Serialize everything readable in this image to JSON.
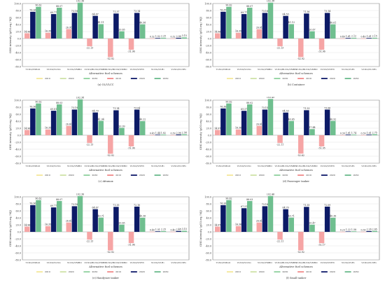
{
  "legend_labels": [
    "2010",
    "2020",
    "2030",
    "2010",
    "2020",
    "2030"
  ],
  "legend_colors": [
    "#f4e79a",
    "#cfe2a8",
    "#8fd19e",
    "#f08a8a",
    "#101b6b",
    "#6aba8c"
  ],
  "series_colors": {
    "2010": "#f6a5a5",
    "2020": "#0c1a66",
    "2030": "#6fbf8f"
  },
  "chart_data": [
    {
      "type": "bar",
      "caption": "(a) OL/VLCC",
      "xlabel": "Alternative fuel schemes",
      "ylabel": "GHG intensity (gCO₂eq / MJ)",
      "ylim": [
        -80,
        100
      ],
      "yticks": [
        -80,
        -60,
        -40,
        -20,
        0,
        20,
        40,
        60,
        80,
        100
      ],
      "categories": [
        "TLNG/VMGO",
        "VLNG/VLNG",
        "VLNG/VMBO",
        "VLNG/BLNG/VMBO",
        "VLNG/BLNG/VMBO",
        "VLNG/VNH3",
        "VLNG/VLH₂",
        "VLNG/VLNH₃"
      ],
      "series": [
        {
          "name": "2010",
          "values": [
            14.96,
            16.35,
            26.91,
            -22.13,
            -52.92,
            -31.96,
            0.32,
            0.32
          ]
        },
        {
          "name": "2020",
          "values": [
            76.26,
            69.77,
            73.18,
            64.67,
            71.37,
            73.14,
            1.52,
            2.06
          ]
        },
        {
          "name": "2030",
          "values": [
            90.62,
            88.07,
            102.36,
            41.11,
            20.65,
            40.58,
            2.25,
            3.15
          ]
        }
      ]
    },
    {
      "type": "bar",
      "caption": "(b) Container",
      "xlabel": "Alternative fuel schemes",
      "ylabel": "GHG intensity (gCO₂eq / MJ)",
      "ylim": [
        -80,
        100
      ],
      "yticks": [
        -80,
        -60,
        -40,
        -20,
        0,
        20,
        40,
        60,
        80,
        100
      ],
      "categories": [
        "TLNG/VMGO",
        "VLNG/VLNG",
        "VLNG/VMBO",
        "VLNG/BLNG/VMBO",
        "VLNG/BLNG/VMBO",
        "VLNG/VNH3",
        "VLNG/VLH₂",
        "VLNG/VLNH₃"
      ],
      "series": [
        {
          "name": "2010",
          "values": [
            14.96,
            16.35,
            26.61,
            -22.13,
            -52.92,
            -31.96,
            0.4,
            0.4
          ]
        },
        {
          "name": "2020",
          "values": [
            76.37,
            69.77,
            73.16,
            64.53,
            71.36,
            73.14,
            1.61,
            1.61
          ]
        },
        {
          "name": "2030",
          "values": [
            90.62,
            88.07,
            102.38,
            41.13,
            20.67,
            40.61,
            2.12,
            2.15
          ]
        }
      ]
    },
    {
      "type": "bar",
      "caption": "(c) Aframax",
      "xlabel": "Alternative fuel schemes",
      "ylabel": "GHG intensity (gCO₂eq / MJ)",
      "ylim": [
        -80,
        100
      ],
      "yticks": [
        -80,
        -60,
        -40,
        -20,
        0,
        20,
        40,
        60,
        80,
        100
      ],
      "categories": [
        "TLNG/VMGO",
        "VLNG/VLNG",
        "VLNG/VMBO",
        "VLNG/BLNG/VMBO",
        "VLNG/BLNG/VMBO",
        "VLNG/VNH3",
        "VLNG/VLH₂",
        "VLNG/VLNH₃"
      ],
      "series": [
        {
          "name": "2010",
          "values": [
            14.96,
            16.35,
            26.61,
            -22.13,
            -52.92,
            -31.96,
            0.43,
            0.39
          ]
        },
        {
          "name": "2020",
          "values": [
            76.36,
            69.81,
            73.19,
            64.79,
            71.14,
            73.04,
            1.44,
            2.06
          ]
        },
        {
          "name": "2030",
          "values": [
            90.62,
            88.03,
            102.38,
            41.04,
            20.99,
            40.22,
            1.82,
            2.58
          ]
        }
      ]
    },
    {
      "type": "bar",
      "caption": "(d) Passenger tanker",
      "xlabel": "Alternative fuel schemes",
      "ylabel": "GHG intensity (gCO₂eq / MJ)",
      "ylim": [
        -80,
        100
      ],
      "yticks": [
        -80,
        -60,
        -40,
        -20,
        0,
        20,
        40,
        60,
        80,
        100
      ],
      "categories": [
        "TLNG/VMGO",
        "VLNG/VLNG",
        "VLNG/VMBO",
        "VLNG/BLNG/VMBO",
        "VLNG/BLNG/VMBO",
        "VLNG/VNH3",
        "VLNG/VLH₂",
        "VLNG/VLNH₃"
      ],
      "series": [
        {
          "name": "2010",
          "values": [
            14.97,
            16.36,
            26.61,
            -22.11,
            -52.62,
            -31.95,
            0.39,
            0.39
          ]
        },
        {
          "name": "2020",
          "values": [
            76.36,
            69.57,
            73.15,
            64.53,
            71.33,
            73.06,
            1.61,
            1.61
          ]
        },
        {
          "name": "2030",
          "values": [
            90.62,
            88.02,
            103.45,
            40.65,
            17.44,
            40.92,
            1.74,
            2.75
          ]
        }
      ]
    },
    {
      "type": "bar",
      "caption": "(e) Handysize tanker",
      "xlabel": "Alternative fuel schemes",
      "ylabel": "GHG intensity (gCO₂eq / MJ)",
      "ylim": [
        -80,
        100
      ],
      "yticks": [
        -80,
        -60,
        -40,
        -20,
        0,
        20,
        40,
        60,
        80,
        100
      ],
      "categories": [
        "TLNG/VMGO",
        "VLNG/VLNG",
        "VLNG/VMBO",
        "VLNG/BLNG/VMBO",
        "VLNG/BLNG/VMBO",
        "VLNG/VNH3",
        "VLNG/VLH₂",
        "VLNG/VLNH₃"
      ],
      "series": [
        {
          "name": "2010",
          "values": [
            14.96,
            16.35,
            26.61,
            -22.13,
            -52.92,
            -31.96,
            0.4,
            0.4
          ]
        },
        {
          "name": "2020",
          "values": [
            76.36,
            69.77,
            73.18,
            64.67,
            71.35,
            72.1,
            1.51,
            2.48
          ]
        },
        {
          "name": "2030",
          "values": [
            90.62,
            88.07,
            102.36,
            40.71,
            20.65,
            40.36,
            2.25,
            3.15
          ]
        }
      ]
    },
    {
      "type": "bar",
      "caption": "(f) Small tanker",
      "xlabel": "Alternative fuel schemes",
      "ylabel": "GHG intensity (gCO₂eq / MJ)",
      "ylim": [
        -80,
        100
      ],
      "yticks": [
        -80,
        -60,
        -40,
        -20,
        0,
        20,
        40,
        60,
        80,
        100
      ],
      "categories": [
        "TLNG/VMGO",
        "VLNG/VLNG",
        "VLNG/VMBO",
        "VLNG/BLNG/VMBO",
        "VLNG/BLNG/VMBO",
        "VLNG/VNH3",
        "VLNG/VLH₂",
        "VLNG/VLNH₃"
      ],
      "series": [
        {
          "name": "2010",
          "values": [
            14.97,
            16.36,
            26.61,
            -22.11,
            -52.92,
            -32.17,
            0.23,
            0.3
          ]
        },
        {
          "name": "2020",
          "values": [
            76.26,
            67.51,
            73.18,
            64.7,
            71.35,
            72.09,
            1.22,
            2.26
          ]
        },
        {
          "name": "2030",
          "values": [
            90.62,
            88.03,
            102.46,
            40.71,
            20.47,
            40.36,
            1.58,
            2.65
          ]
        }
      ]
    }
  ]
}
